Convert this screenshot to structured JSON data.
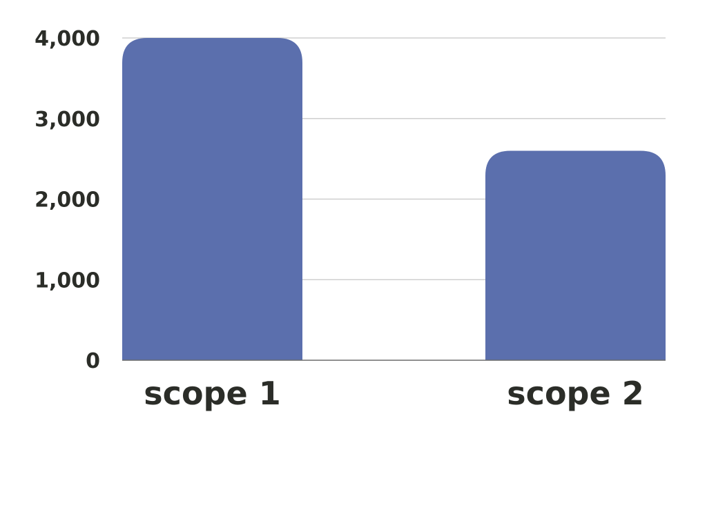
{
  "chart_data": {
    "type": "bar",
    "categories": [
      "scope 1",
      "scope 2"
    ],
    "values": [
      4000,
      2600
    ],
    "ylim": [
      0,
      4000
    ],
    "yticks": [
      0,
      1000,
      2000,
      3000,
      4000
    ],
    "ytick_labels": [
      "0",
      "1,000",
      "2,000",
      "3,000",
      "4,000"
    ],
    "title": "",
    "xlabel": "",
    "ylabel": "",
    "grid": true,
    "bar_color": "#5b6fad"
  }
}
